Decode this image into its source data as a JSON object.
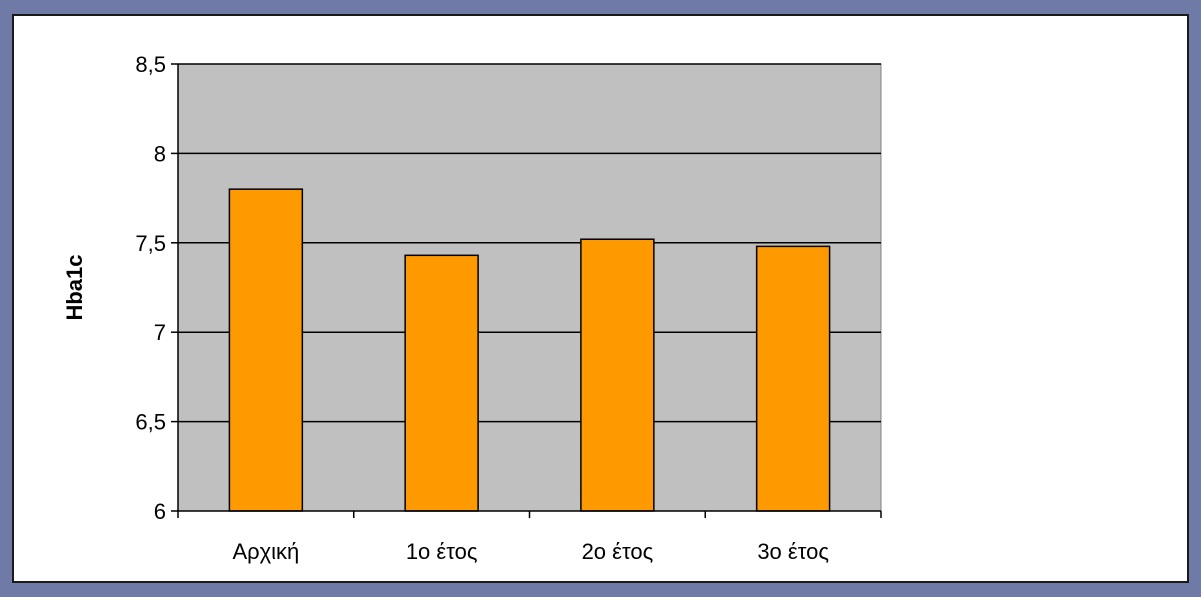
{
  "chart_data": {
    "type": "bar",
    "title": "",
    "xlabel": "",
    "ylabel": "Hba1c",
    "categories": [
      "Αρχική",
      "1ο έτος",
      "2ο έτος",
      "3ο έτος"
    ],
    "values": [
      7.8,
      7.43,
      7.52,
      7.48
    ],
    "ylim": [
      6,
      8.5
    ],
    "yticks": [
      6,
      6.5,
      7,
      7.5,
      8,
      8.5
    ],
    "ytick_labels": [
      "6",
      "6,5",
      "7",
      "7,5",
      "8",
      "8,5"
    ],
    "grid": true,
    "legend": "none",
    "colors": {
      "bar_fill": "#ff9900",
      "bar_stroke": "#000000",
      "plot_background": "#c0c0c0",
      "gridline": "#000000",
      "frame_background": "#ffffff",
      "page_background": "#6f7aa6"
    }
  }
}
